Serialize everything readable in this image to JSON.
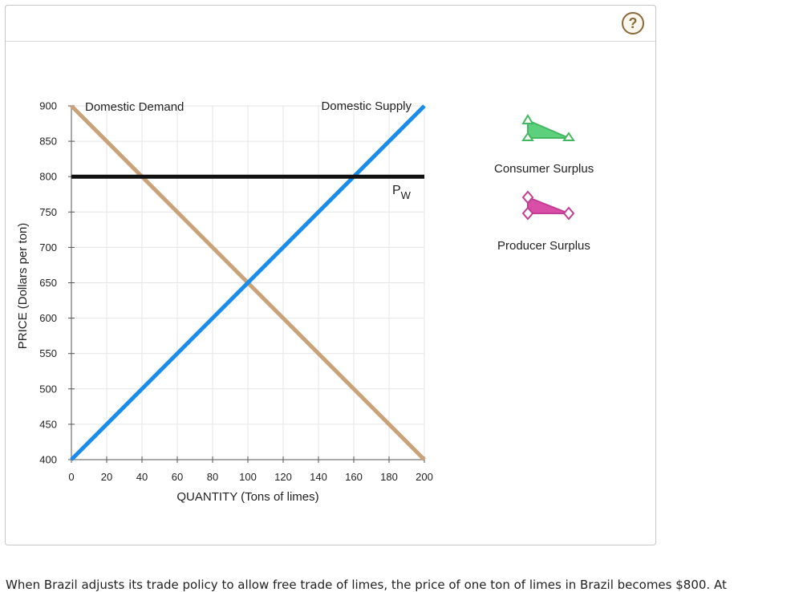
{
  "help": {
    "label": "?"
  },
  "legend": {
    "consumer_surplus": {
      "label": "Consumer Surplus",
      "color": "#5cd07c",
      "stroke": "#43b861",
      "icon": "triangle-tool-icon"
    },
    "producer_surplus": {
      "label": "Producer Surplus",
      "color": "#d94fa8",
      "stroke": "#c23d93",
      "icon": "triangle-tool-icon"
    }
  },
  "chart_data": {
    "type": "line",
    "xlabel": "QUANTITY (Tons of limes)",
    "ylabel": "PRICE (Dollars per ton)",
    "xlim": [
      0,
      200
    ],
    "ylim": [
      400,
      900
    ],
    "x_ticks": [
      0,
      20,
      40,
      60,
      80,
      100,
      120,
      140,
      160,
      180,
      200
    ],
    "y_ticks": [
      400,
      450,
      500,
      550,
      600,
      650,
      700,
      750,
      800,
      850,
      900
    ],
    "grid": true,
    "series": [
      {
        "name": "Domestic Demand",
        "color": "#c9a27a",
        "points": [
          [
            0,
            900
          ],
          [
            200,
            400
          ]
        ]
      },
      {
        "name": "Domestic Supply",
        "color": "#1a8cec",
        "points": [
          [
            0,
            400
          ],
          [
            200,
            900
          ]
        ]
      }
    ],
    "world_price": {
      "label_main": "P",
      "label_sub": "W",
      "value": 800,
      "color": "#111111"
    }
  },
  "footer": {
    "text": "When Brazil adjusts its trade policy to allow free trade of limes, the price of one ton of limes in Brazil becomes $800. At"
  }
}
